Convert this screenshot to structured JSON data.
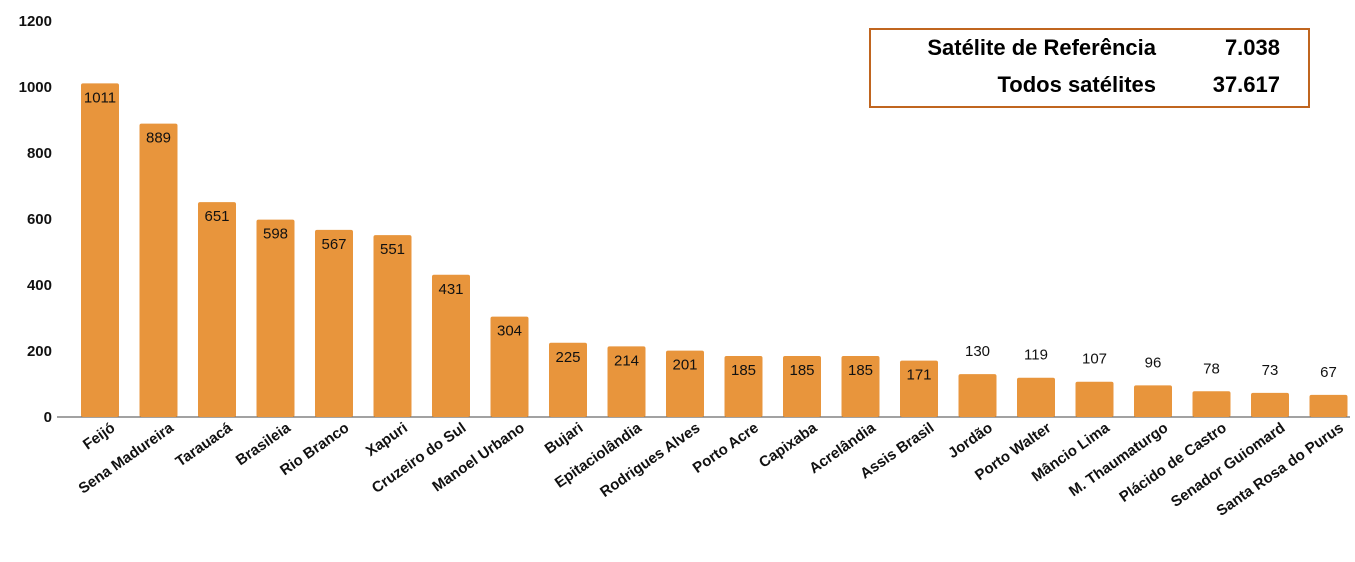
{
  "chart_data": {
    "type": "bar",
    "categories": [
      "Feijó",
      "Sena Madureira",
      "Tarauacá",
      "Brasileia",
      "Rio Branco",
      "Xapuri",
      "Cruzeiro do Sul",
      "Manoel Urbano",
      "Bujari",
      "Epitaciolândia",
      "Rodrigues Alves",
      "Porto Acre",
      "Capixaba",
      "Acrelândia",
      "Assis Brasil",
      "Jordão",
      "Porto Walter",
      "Mâncio Lima",
      "M. Thaumaturgo",
      "Plácido de Castro",
      "Senador Guiomard",
      "Santa Rosa do Purus"
    ],
    "values": [
      1011,
      889,
      651,
      598,
      567,
      551,
      431,
      304,
      225,
      214,
      201,
      185,
      185,
      185,
      171,
      130,
      119,
      107,
      96,
      78,
      73,
      67
    ],
    "ylim": [
      0,
      1200
    ],
    "yticks": [
      0,
      200,
      400,
      600,
      800,
      1000,
      1200
    ],
    "grid": false,
    "bar_color": "#e8953c",
    "label_color": "#111111"
  },
  "info_box": {
    "border_color": "#c0651f",
    "rows": [
      {
        "label": "Satélite de Referência",
        "value": "7.038"
      },
      {
        "label": "Todos satélites",
        "value": "37.617"
      }
    ]
  }
}
